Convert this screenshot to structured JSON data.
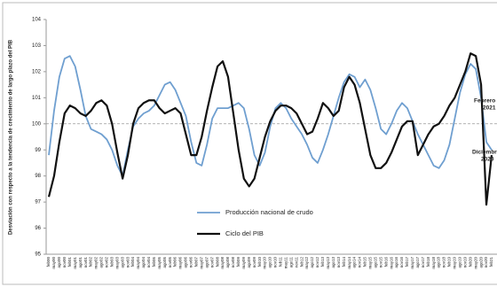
{
  "chart_data": {
    "type": "line",
    "y_label": "Desviación con respecto a la tendencia de crecimiento de largo plazo del PIB",
    "categories": [
      "feb00",
      "may00",
      "ago00",
      "nov00",
      "feb01",
      "may01",
      "ago01",
      "nov01",
      "feb02",
      "may02",
      "ago02",
      "nov02",
      "feb03",
      "may03",
      "ago03",
      "nov03",
      "feb04",
      "may04",
      "ago04",
      "nov04",
      "feb05",
      "may05",
      "ago05",
      "nov05",
      "feb06",
      "may06",
      "ago06",
      "nov06",
      "feb07",
      "may07",
      "ago07",
      "nov07",
      "feb08",
      "may08",
      "ago08",
      "nov08",
      "feb09",
      "may09",
      "ago09",
      "nov09",
      "feb10",
      "may10",
      "ago10",
      "nov10",
      "feb11",
      "may11",
      "ago11",
      "nov11",
      "feb12",
      "may12",
      "ago12",
      "nov12",
      "feb13",
      "may13",
      "ago13",
      "nov13",
      "feb14",
      "may14",
      "ago14",
      "nov14",
      "feb15",
      "may15",
      "ago15",
      "nov15",
      "feb16",
      "may16",
      "ago16",
      "nov16",
      "feb17",
      "may17",
      "ago17",
      "nov17",
      "feb18",
      "may18",
      "ago18",
      "nov18",
      "feb19",
      "may19",
      "ago19",
      "nov19",
      "feb20",
      "may20",
      "ago20",
      "nov20",
      "feb21"
    ],
    "series": [
      {
        "name": "Producción nacional de crudo",
        "color": "#6f9fd0",
        "values": [
          98.8,
          100.5,
          101.8,
          102.5,
          102.6,
          102.2,
          101.3,
          100.3,
          99.8,
          99.7,
          99.6,
          99.4,
          99.0,
          98.4,
          98.0,
          99.0,
          99.9,
          100.2,
          100.4,
          100.5,
          100.7,
          101.1,
          101.5,
          101.6,
          101.3,
          100.8,
          100.3,
          99.3,
          98.5,
          98.4,
          99.2,
          100.2,
          100.6,
          100.6,
          100.6,
          100.7,
          100.8,
          100.6,
          99.8,
          98.8,
          98.4,
          98.9,
          99.9,
          100.6,
          100.8,
          100.6,
          100.2,
          99.9,
          99.6,
          99.2,
          98.7,
          98.5,
          99.0,
          99.6,
          100.3,
          101.0,
          101.6,
          101.9,
          101.8,
          101.4,
          101.7,
          101.3,
          100.6,
          99.8,
          99.6,
          100.0,
          100.5,
          100.8,
          100.6,
          100.1,
          99.6,
          99.2,
          98.8,
          98.4,
          98.3,
          98.6,
          99.2,
          100.2,
          101.2,
          101.9,
          102.3,
          102.1,
          101.0,
          99.3,
          99.0
        ]
      },
      {
        "name": "Ciclo del PIB",
        "color": "#111111",
        "values": [
          97.2,
          98.0,
          99.3,
          100.4,
          100.7,
          100.6,
          100.4,
          100.3,
          100.5,
          100.8,
          100.9,
          100.7,
          100.0,
          98.9,
          97.9,
          98.8,
          100.0,
          100.6,
          100.8,
          100.9,
          100.9,
          100.6,
          100.4,
          100.5,
          100.6,
          100.4,
          99.6,
          98.8,
          98.8,
          99.5,
          100.5,
          101.4,
          102.2,
          102.4,
          101.8,
          100.4,
          99.0,
          97.9,
          97.6,
          97.9,
          98.7,
          99.5,
          100.1,
          100.5,
          100.7,
          100.7,
          100.6,
          100.4,
          100.0,
          99.6,
          99.7,
          100.2,
          100.8,
          100.6,
          100.3,
          100.5,
          101.4,
          101.8,
          101.5,
          100.8,
          99.8,
          98.8,
          98.3,
          98.3,
          98.5,
          98.9,
          99.4,
          99.9,
          100.1,
          100.1,
          98.8,
          99.2,
          99.6,
          99.9,
          100.0,
          100.3,
          100.7,
          101.0,
          101.5,
          102.0,
          102.7,
          102.6,
          101.5,
          96.9,
          98.8
        ]
      }
    ],
    "ylim": [
      95,
      104
    ],
    "yticks": [
      95,
      96,
      97,
      98,
      99,
      100,
      101,
      102,
      103,
      104
    ],
    "reference_line": 100,
    "annotations": [
      {
        "lines": [
          "Febrero",
          "2021"
        ],
        "color": "#6f9fd0"
      },
      {
        "lines": [
          "Diciembre",
          "2020"
        ],
        "color": "#111111"
      }
    ]
  }
}
